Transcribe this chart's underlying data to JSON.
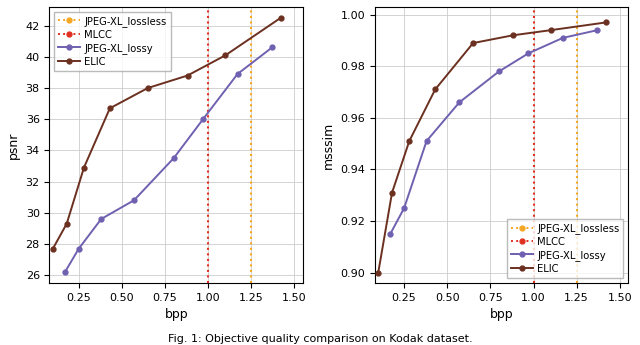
{
  "left_plot": {
    "xlabel": "bpp",
    "ylabel": "psnr",
    "xlim": [
      0.08,
      1.55
    ],
    "ylim": [
      25.5,
      43.2
    ],
    "yticks": [
      26,
      28,
      30,
      32,
      34,
      36,
      38,
      40,
      42
    ],
    "xticks": [
      0.25,
      0.5,
      0.75,
      1.0,
      1.25,
      1.5
    ],
    "elic_bpp": [
      0.1,
      0.18,
      0.28,
      0.43,
      0.65,
      0.88,
      1.1,
      1.42
    ],
    "elic_psnr": [
      27.7,
      29.3,
      32.9,
      36.7,
      38.0,
      38.8,
      40.1,
      42.5
    ],
    "jxl_bpp": [
      0.17,
      0.25,
      0.38,
      0.57,
      0.8,
      0.97,
      1.17,
      1.37
    ],
    "jxl_psnr": [
      26.2,
      27.7,
      29.6,
      30.8,
      33.5,
      36.0,
      38.9,
      40.6
    ],
    "mlcc_vline": 1.0,
    "jxll_vline": 1.25,
    "vline_mlcc_color": "#e03020",
    "vline_jxll_color": "#f5a623"
  },
  "right_plot": {
    "xlabel": "bpp",
    "ylabel": "msssim",
    "xlim": [
      0.08,
      1.55
    ],
    "ylim": [
      0.896,
      1.003
    ],
    "yticks": [
      0.9,
      0.92,
      0.94,
      0.96,
      0.98,
      1.0
    ],
    "xticks": [
      0.25,
      0.5,
      0.75,
      1.0,
      1.25,
      1.5
    ],
    "elic_bpp": [
      0.1,
      0.18,
      0.28,
      0.43,
      0.65,
      0.88,
      1.1,
      1.42
    ],
    "elic_msssim": [
      0.9,
      0.931,
      0.951,
      0.971,
      0.989,
      0.992,
      0.994,
      0.997
    ],
    "jxl_bpp": [
      0.17,
      0.25,
      0.38,
      0.57,
      0.8,
      0.97,
      1.17,
      1.37
    ],
    "jxl_msssim": [
      0.915,
      0.925,
      0.951,
      0.966,
      0.978,
      0.985,
      0.991,
      0.994
    ],
    "mlcc_vline": 1.0,
    "jxll_vline": 1.25,
    "vline_mlcc_color": "#e03020",
    "vline_jxll_color": "#f5a623"
  },
  "elic_color": "#6b3020",
  "jxl_lossy_color": "#7060b0",
  "mlcc_color": "#e03020",
  "jxll_color": "#f5a623",
  "marker": "o",
  "markersize": 3.5,
  "linewidth": 1.4,
  "grid_color": "#cccccc",
  "caption": "Fig. 1: Objective quality comparison on Kodak dataset."
}
